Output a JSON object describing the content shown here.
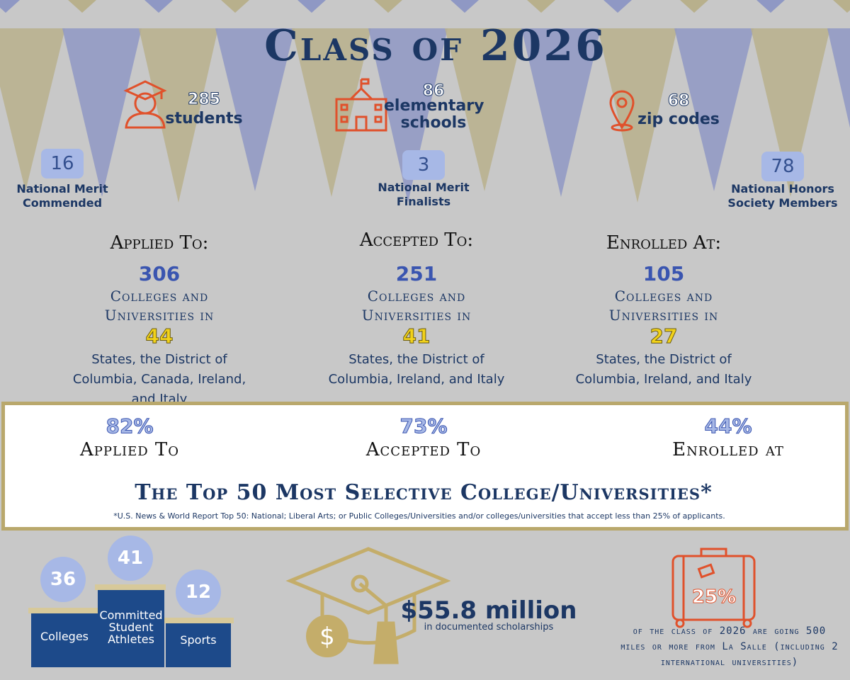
{
  "title": "Class of 2026",
  "stats": [
    {
      "value": 285,
      "label": "students"
    },
    {
      "value": 86,
      "label": "elementary schools"
    },
    {
      "value": 68,
      "label": "zip codes"
    }
  ],
  "honors": [
    {
      "value": 16,
      "label": "National Merit Commended"
    },
    {
      "value": 3,
      "label": "National Merit Finalists"
    },
    {
      "value": 78,
      "label": "National Honors Society Members"
    }
  ],
  "colleges": [
    {
      "heading": "Applied To:",
      "count": 306,
      "count_label": "Colleges and Universities in",
      "states": 44,
      "places": "States, the District of Columbia, Canada, Ireland, and Italy"
    },
    {
      "heading": "Accepted To:",
      "count": 251,
      "count_label": "Colleges and Universities in",
      "states": 41,
      "places": "States, the District of Columbia, Ireland, and Italy"
    },
    {
      "heading": "Enrolled At:",
      "count": 105,
      "count_label": "Colleges and Universities in",
      "states": 27,
      "places": "States, the District of Columbia, Ireland, and Italy"
    }
  ],
  "selective": {
    "items": [
      {
        "percent": "82%",
        "label": "Applied To"
      },
      {
        "percent": "73%",
        "label": "Accepted To"
      },
      {
        "percent": "44%",
        "label": "Enrolled at"
      }
    ],
    "title": "The Top 50 Most Selective College/Universities*",
    "footnote": "*U.S. News & World Report Top 50: National; Liberal Arts; or Public Colleges/Universities and/or colleges/universities that accept less than 25% of applicants."
  },
  "athletes": [
    {
      "value": 36,
      "label": "Colleges"
    },
    {
      "value": 41,
      "label": "Committed Student Athletes"
    },
    {
      "value": 12,
      "label": "Sports"
    }
  ],
  "scholarships": {
    "amount": "$55.8 million",
    "label": "in documented scholarships"
  },
  "travel": {
    "percent": "25%",
    "text": "of the class of 2026 are going 500 miles or more from La Salle (including 2 international universities)"
  }
}
